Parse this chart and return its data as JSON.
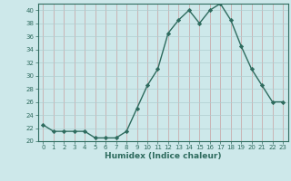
{
  "x": [
    0,
    1,
    2,
    3,
    4,
    5,
    6,
    7,
    8,
    9,
    10,
    11,
    12,
    13,
    14,
    15,
    16,
    17,
    18,
    19,
    20,
    21,
    22,
    23
  ],
  "y": [
    22.5,
    21.5,
    21.5,
    21.5,
    21.5,
    20.5,
    20.5,
    20.5,
    21.5,
    25,
    28.5,
    31,
    36.5,
    38.5,
    40,
    38,
    40,
    41,
    38.5,
    34.5,
    31,
    28.5,
    26,
    26
  ],
  "line_color": "#2e6b5e",
  "marker": "D",
  "marker_size": 2.2,
  "background_color": "#cde8ea",
  "grid_color": "#b0cdd0",
  "xlabel": "Humidex (Indice chaleur)",
  "ylim": [
    20,
    41
  ],
  "xlim": [
    -0.5,
    23.5
  ],
  "yticks": [
    20,
    22,
    24,
    26,
    28,
    30,
    32,
    34,
    36,
    38,
    40
  ],
  "xticks": [
    0,
    1,
    2,
    3,
    4,
    5,
    6,
    7,
    8,
    9,
    10,
    11,
    12,
    13,
    14,
    15,
    16,
    17,
    18,
    19,
    20,
    21,
    22,
    23
  ]
}
